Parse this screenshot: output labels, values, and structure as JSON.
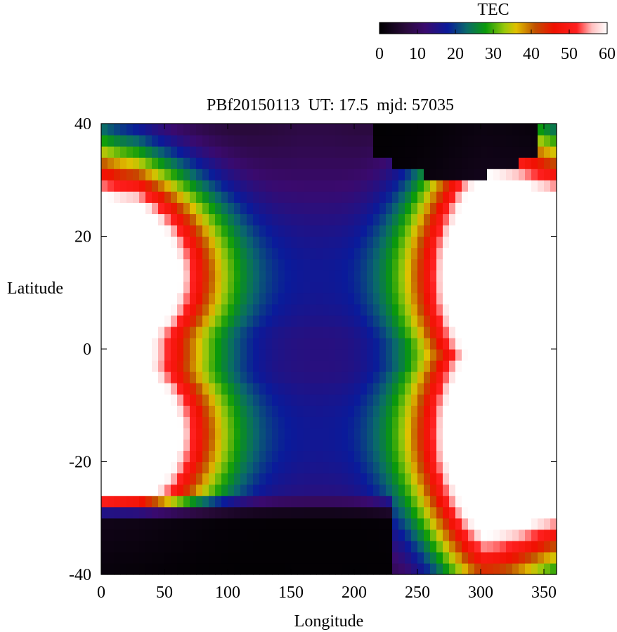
{
  "chart_data": {
    "type": "heatmap",
    "title": "PBf20150113  UT: 17.5  mjd: 57035",
    "xlabel": "Longitude",
    "ylabel": "Latitude",
    "xlim": [
      0,
      360
    ],
    "ylim": [
      -40,
      40
    ],
    "x_ticks": [
      "0",
      "50",
      "100",
      "150",
      "200",
      "250",
      "300",
      "350"
    ],
    "y_ticks": [
      "40",
      "20",
      "0",
      "-20",
      "-40"
    ],
    "colorbar": {
      "label": "TEC",
      "range": [
        0,
        60
      ],
      "ticks": [
        "0",
        "10",
        "20",
        "30",
        "40",
        "50",
        "60"
      ],
      "colormap": [
        [
          0,
          "#000000"
        ],
        [
          7,
          "#2a0a3c"
        ],
        [
          12,
          "#3a0a6e"
        ],
        [
          18,
          "#0a1a9a"
        ],
        [
          23,
          "#0a6a6a"
        ],
        [
          28,
          "#0a9a0a"
        ],
        [
          33,
          "#9ac80a"
        ],
        [
          36,
          "#e0c000"
        ],
        [
          41,
          "#c05000"
        ],
        [
          46,
          "#f01000"
        ],
        [
          52,
          "#ff2020"
        ],
        [
          56,
          "#ffc0c0"
        ],
        [
          60,
          "#ffffff"
        ]
      ]
    },
    "grid": {
      "lon_step": 5,
      "lat_step": 2
    },
    "model": {
      "description_units": "TEC",
      "anomaly_crests_north_lat": 13,
      "anomaly_crests_south_lat": -15
    },
    "colors": {
      "axis": "#000000",
      "background": "#ffffff"
    }
  }
}
